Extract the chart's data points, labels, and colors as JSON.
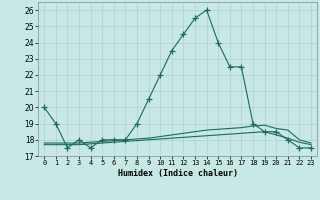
{
  "x": [
    0,
    1,
    2,
    3,
    4,
    5,
    6,
    7,
    8,
    9,
    10,
    11,
    12,
    13,
    14,
    15,
    16,
    17,
    18,
    19,
    20,
    21,
    22,
    23
  ],
  "y_main": [
    20,
    19,
    17.5,
    18,
    17.5,
    18,
    18,
    18,
    19,
    20.5,
    22,
    23.5,
    24.5,
    25.5,
    26,
    24,
    22.5,
    22.5,
    19,
    18.5,
    18.5,
    18,
    17.5,
    17.5
  ],
  "y_line2": [
    17.7,
    17.7,
    17.7,
    17.7,
    17.75,
    17.8,
    17.85,
    17.9,
    17.95,
    18.0,
    18.05,
    18.1,
    18.15,
    18.2,
    18.25,
    18.3,
    18.35,
    18.4,
    18.45,
    18.5,
    18.3,
    18.1,
    17.85,
    17.7
  ],
  "y_line3": [
    17.8,
    17.8,
    17.8,
    17.8,
    17.85,
    17.9,
    17.95,
    18.0,
    18.05,
    18.1,
    18.2,
    18.3,
    18.4,
    18.5,
    18.6,
    18.65,
    18.7,
    18.75,
    18.85,
    18.9,
    18.7,
    18.6,
    18.0,
    17.8
  ],
  "line_color": "#1a6b5a",
  "bg_color": "#c8e8e5",
  "grid_color": "#b0d0cd",
  "xlabel": "Humidex (Indice chaleur)",
  "ylim": [
    17,
    26.5
  ],
  "xlim": [
    -0.5,
    23.5
  ],
  "yticks": [
    17,
    18,
    19,
    20,
    21,
    22,
    23,
    24,
    25,
    26
  ],
  "xticks": [
    0,
    1,
    2,
    3,
    4,
    5,
    6,
    7,
    8,
    9,
    10,
    11,
    12,
    13,
    14,
    15,
    16,
    17,
    18,
    19,
    20,
    21,
    22,
    23
  ],
  "xtick_labels": [
    "0",
    "1",
    "2",
    "3",
    "4",
    "5",
    "6",
    "7",
    "8",
    "9",
    "10",
    "11",
    "12",
    "13",
    "14",
    "15",
    "16",
    "17",
    "18",
    "19",
    "20",
    "21",
    "22",
    "23"
  ],
  "markersize": 4,
  "linewidth": 0.8
}
